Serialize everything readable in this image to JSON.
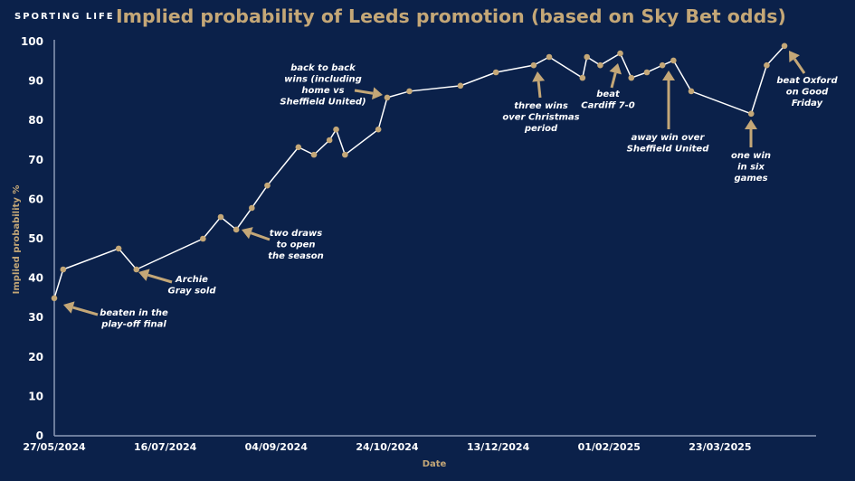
{
  "brand": "SPORTING LIFE",
  "chart_data": {
    "type": "line",
    "title": "Implied probability of Leeds promotion (based on Sky Bet odds)",
    "xlabel": "Date",
    "ylabel": "Implied probability %",
    "ylim": [
      0,
      100
    ],
    "yticks": [
      "0",
      "10",
      "20",
      "30",
      "40",
      "50",
      "60",
      "70",
      "80",
      "90",
      "100"
    ],
    "xticks": [
      "27/05/2024",
      "16/07/2024",
      "04/09/2024",
      "24/10/2024",
      "13/12/2024",
      "01/02/2025",
      "23/03/2025"
    ],
    "grid": false,
    "colors": {
      "line": "#ffffff",
      "marker": "#c4a777",
      "background": "#0b214a",
      "accent": "#c4a777"
    },
    "points": [
      {
        "x": "27/05/2024",
        "y": 34.9
      },
      {
        "x": "31/05/2024",
        "y": 42.2
      },
      {
        "x": "25/06/2024",
        "y": 47.5
      },
      {
        "x": "03/07/2024",
        "y": 42.2
      },
      {
        "x": "02/08/2024",
        "y": 50.0
      },
      {
        "x": "10/08/2024",
        "y": 55.5
      },
      {
        "x": "17/08/2024",
        "y": 52.3
      },
      {
        "x": "24/08/2024",
        "y": 57.8
      },
      {
        "x": "31/08/2024",
        "y": 63.5
      },
      {
        "x": "14/09/2024",
        "y": 73.2
      },
      {
        "x": "21/09/2024",
        "y": 71.3
      },
      {
        "x": "28/09/2024",
        "y": 75.0
      },
      {
        "x": "01/10/2024",
        "y": 77.7
      },
      {
        "x": "05/10/2024",
        "y": 71.3
      },
      {
        "x": "20/10/2024",
        "y": 77.7
      },
      {
        "x": "24/10/2024",
        "y": 85.8
      },
      {
        "x": "03/11/2024",
        "y": 87.4
      },
      {
        "x": "26/11/2024",
        "y": 88.8
      },
      {
        "x": "12/12/2024",
        "y": 92.2
      },
      {
        "x": "29/12/2024",
        "y": 94.0
      },
      {
        "x": "05/01/2025",
        "y": 96.1
      },
      {
        "x": "20/01/2025",
        "y": 90.8
      },
      {
        "x": "22/01/2025",
        "y": 96.1
      },
      {
        "x": "28/01/2025",
        "y": 94.0
      },
      {
        "x": "06/02/2025",
        "y": 97.0
      },
      {
        "x": "11/02/2025",
        "y": 90.8
      },
      {
        "x": "18/02/2025",
        "y": 92.2
      },
      {
        "x": "25/02/2025",
        "y": 94.0
      },
      {
        "x": "02/03/2025",
        "y": 95.2
      },
      {
        "x": "10/03/2025",
        "y": 87.4
      },
      {
        "x": "06/04/2025",
        "y": 81.7
      },
      {
        "x": "13/04/2025",
        "y": 94.0
      },
      {
        "x": "21/04/2025",
        "y": 98.9
      }
    ],
    "annotations": [
      {
        "lines": [
          "beaten in the",
          "play-off final"
        ]
      },
      {
        "lines": [
          "Archie",
          "Gray sold"
        ]
      },
      {
        "lines": [
          "two draws",
          "to open",
          "the season"
        ]
      },
      {
        "lines": [
          "back to back",
          "wins (including",
          "home vs",
          "Sheffield United)"
        ]
      },
      {
        "lines": [
          "three wins",
          "over Christmas",
          "period"
        ]
      },
      {
        "lines": [
          "beat",
          "Cardiff 7-0"
        ]
      },
      {
        "lines": [
          "away win over",
          "Sheffield United"
        ]
      },
      {
        "lines": [
          "one win",
          "in six",
          "games"
        ]
      },
      {
        "lines": [
          "beat Oxford",
          "on Good",
          "Friday"
        ]
      }
    ]
  }
}
